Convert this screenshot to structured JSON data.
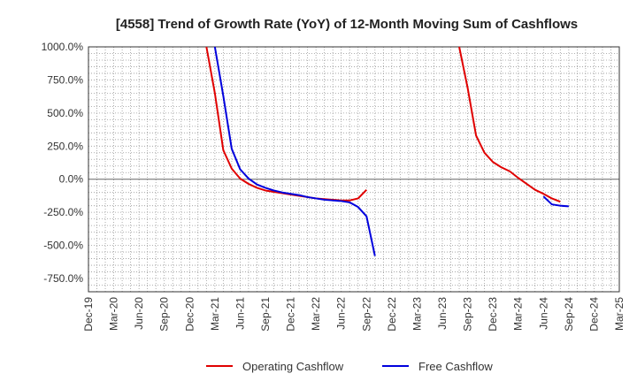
{
  "chart_data": {
    "type": "line",
    "title": "[4558]  Trend of Growth Rate (YoY) of 12-Month Moving Sum of Cashflows",
    "xlabel": "",
    "ylabel": "",
    "ylim": [
      -850,
      1000
    ],
    "yticks": [
      1000,
      750,
      500,
      250,
      0,
      -250,
      -500,
      -750
    ],
    "ytick_labels": [
      "1000.0%",
      "750.0%",
      "500.0%",
      "250.0%",
      "0.0%",
      "-250.0%",
      "-500.0%",
      "-750.0%"
    ],
    "xtick_labels": [
      "Dec-19",
      "Mar-20",
      "Jun-20",
      "Sep-20",
      "Dec-20",
      "Mar-21",
      "Jun-21",
      "Sep-21",
      "Dec-21",
      "Mar-22",
      "Jun-22",
      "Sep-22",
      "Dec-22",
      "Mar-23",
      "Jun-23",
      "Sep-23",
      "Dec-23",
      "Mar-24",
      "Jun-24",
      "Sep-24",
      "Dec-24",
      "Mar-25"
    ],
    "grid": true,
    "legend_position": "bottom",
    "series": [
      {
        "name": "Operating Cashflow",
        "color": "#e00000",
        "segments": [
          [
            [
              "Feb-21",
              1000
            ],
            [
              "Mar-21",
              650
            ],
            [
              "Apr-21",
              220
            ],
            [
              "May-21",
              80
            ],
            [
              "Jun-21",
              5
            ],
            [
              "Jul-21",
              -35
            ],
            [
              "Aug-21",
              -65
            ],
            [
              "Sep-21",
              -85
            ],
            [
              "Oct-21",
              -95
            ],
            [
              "Nov-21",
              -105
            ],
            [
              "Dec-21",
              -115
            ],
            [
              "Jan-22",
              -125
            ],
            [
              "Feb-22",
              -135
            ],
            [
              "Mar-22",
              -145
            ],
            [
              "Apr-22",
              -150
            ],
            [
              "May-22",
              -155
            ],
            [
              "Jun-22",
              -160
            ],
            [
              "Jul-22",
              -160
            ],
            [
              "Aug-22",
              -145
            ],
            [
              "Sep-22",
              -80
            ]
          ],
          [
            [
              "Aug-23",
              1000
            ],
            [
              "Sep-23",
              690
            ],
            [
              "Oct-23",
              330
            ],
            [
              "Nov-23",
              200
            ],
            [
              "Dec-23",
              130
            ],
            [
              "Jan-24",
              90
            ],
            [
              "Feb-24",
              60
            ],
            [
              "Mar-24",
              10
            ],
            [
              "Apr-24",
              -35
            ],
            [
              "May-24",
              -80
            ],
            [
              "Jun-24",
              -110
            ],
            [
              "Jul-24",
              -145
            ],
            [
              "Aug-24",
              -170
            ]
          ]
        ]
      },
      {
        "name": "Free Cashflow",
        "color": "#0000dd",
        "segments": [
          [
            [
              "Mar-21",
              1000
            ],
            [
              "Apr-21",
              630
            ],
            [
              "May-21",
              230
            ],
            [
              "Jun-21",
              75
            ],
            [
              "Jul-21",
              5
            ],
            [
              "Aug-21",
              -40
            ],
            [
              "Sep-21",
              -65
            ],
            [
              "Oct-21",
              -85
            ],
            [
              "Nov-21",
              -100
            ],
            [
              "Dec-21",
              -110
            ],
            [
              "Jan-22",
              -120
            ],
            [
              "Feb-22",
              -135
            ],
            [
              "Mar-22",
              -145
            ],
            [
              "Apr-22",
              -155
            ],
            [
              "May-22",
              -160
            ],
            [
              "Jun-22",
              -165
            ],
            [
              "Jul-22",
              -175
            ],
            [
              "Aug-22",
              -210
            ],
            [
              "Sep-22",
              -280
            ],
            [
              "Oct-22",
              -580
            ]
          ],
          [
            [
              "Jun-24",
              -130
            ],
            [
              "Jul-24",
              -190
            ],
            [
              "Aug-24",
              -200
            ],
            [
              "Sep-24",
              -205
            ]
          ]
        ]
      }
    ]
  }
}
